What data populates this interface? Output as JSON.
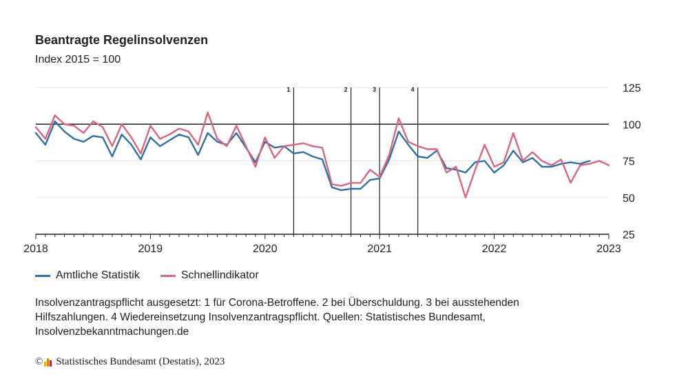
{
  "header": {
    "title": "Beantragte Regelinsolvenzen",
    "subtitle": "Index 2015 = 100"
  },
  "legend": {
    "series_a": "Amtliche Statistik",
    "series_b": "Schnellindikator"
  },
  "footnote": "Insolvenzantragspflicht ausgesetzt: 1 für Corona-Betroffene. 2 bei Überschuldung. 3 bei ausstehenden Hilfszahlungen. 4 Wiedereinsetzung Insolvenzantragspflicht. Quellen: Statistisches Bundesamt, Insolvenzbekanntmachungen.de",
  "copyright": {
    "symbol": "©",
    "text": "Statistisches Bundesamt (Destatis), 2023",
    "logo_colors": [
      "#f0b400",
      "#e08a00",
      "#c2185b"
    ]
  },
  "colors": {
    "series_a": "#2f6fa5",
    "series_b": "#d9667d",
    "axis": "#222222",
    "grid": "#e5e5e5"
  },
  "chart_data": {
    "type": "line",
    "title": "Beantragte Regelinsolvenzen",
    "subtitle": "Index 2015 = 100",
    "x_start": "2018-01",
    "x_range": [
      "2018-01",
      "2023-01"
    ],
    "x_ticks": [
      "2018",
      "2019",
      "2020",
      "2021",
      "2022",
      "2023"
    ],
    "y_range": [
      25,
      125
    ],
    "y_ticks": [
      25,
      50,
      75,
      100,
      125
    ],
    "y_axis_position": "right",
    "reference_line": 100,
    "grid": true,
    "legend_position": "bottom-left",
    "markers": [
      {
        "label": "1",
        "x": "2020-04"
      },
      {
        "label": "2",
        "x": "2020-10"
      },
      {
        "label": "3",
        "x": "2021-01"
      },
      {
        "label": "4",
        "x": "2021-05"
      }
    ],
    "series": [
      {
        "name": "Amtliche Statistik",
        "color": "#2f6fa5",
        "values": [
          94,
          86,
          102,
          95,
          90,
          88,
          92,
          91,
          78,
          93,
          86,
          76,
          91,
          85,
          89,
          93,
          91,
          79,
          94,
          88,
          86,
          94,
          84,
          74,
          88,
          84,
          85,
          80,
          81,
          78,
          76,
          57,
          55,
          56,
          56,
          62,
          63,
          76,
          95,
          86,
          78,
          77,
          82,
          70,
          69,
          67,
          74,
          75,
          67,
          72,
          82,
          74,
          77,
          71,
          71,
          73,
          74,
          73,
          75
        ]
      },
      {
        "name": "Schnellindikator",
        "color": "#d9667d",
        "values": [
          98,
          90,
          106,
          100,
          99,
          94,
          102,
          98,
          85,
          100,
          91,
          80,
          99,
          90,
          93,
          97,
          95,
          86,
          108,
          90,
          85,
          99,
          85,
          71,
          91,
          77,
          85,
          86,
          87,
          85,
          84,
          59,
          58,
          60,
          60,
          69,
          64,
          79,
          104,
          88,
          85,
          83,
          83,
          67,
          71,
          50,
          69,
          86,
          71,
          74,
          94,
          75,
          81,
          75,
          72,
          76,
          60,
          72,
          73,
          75,
          72
        ]
      }
    ]
  }
}
